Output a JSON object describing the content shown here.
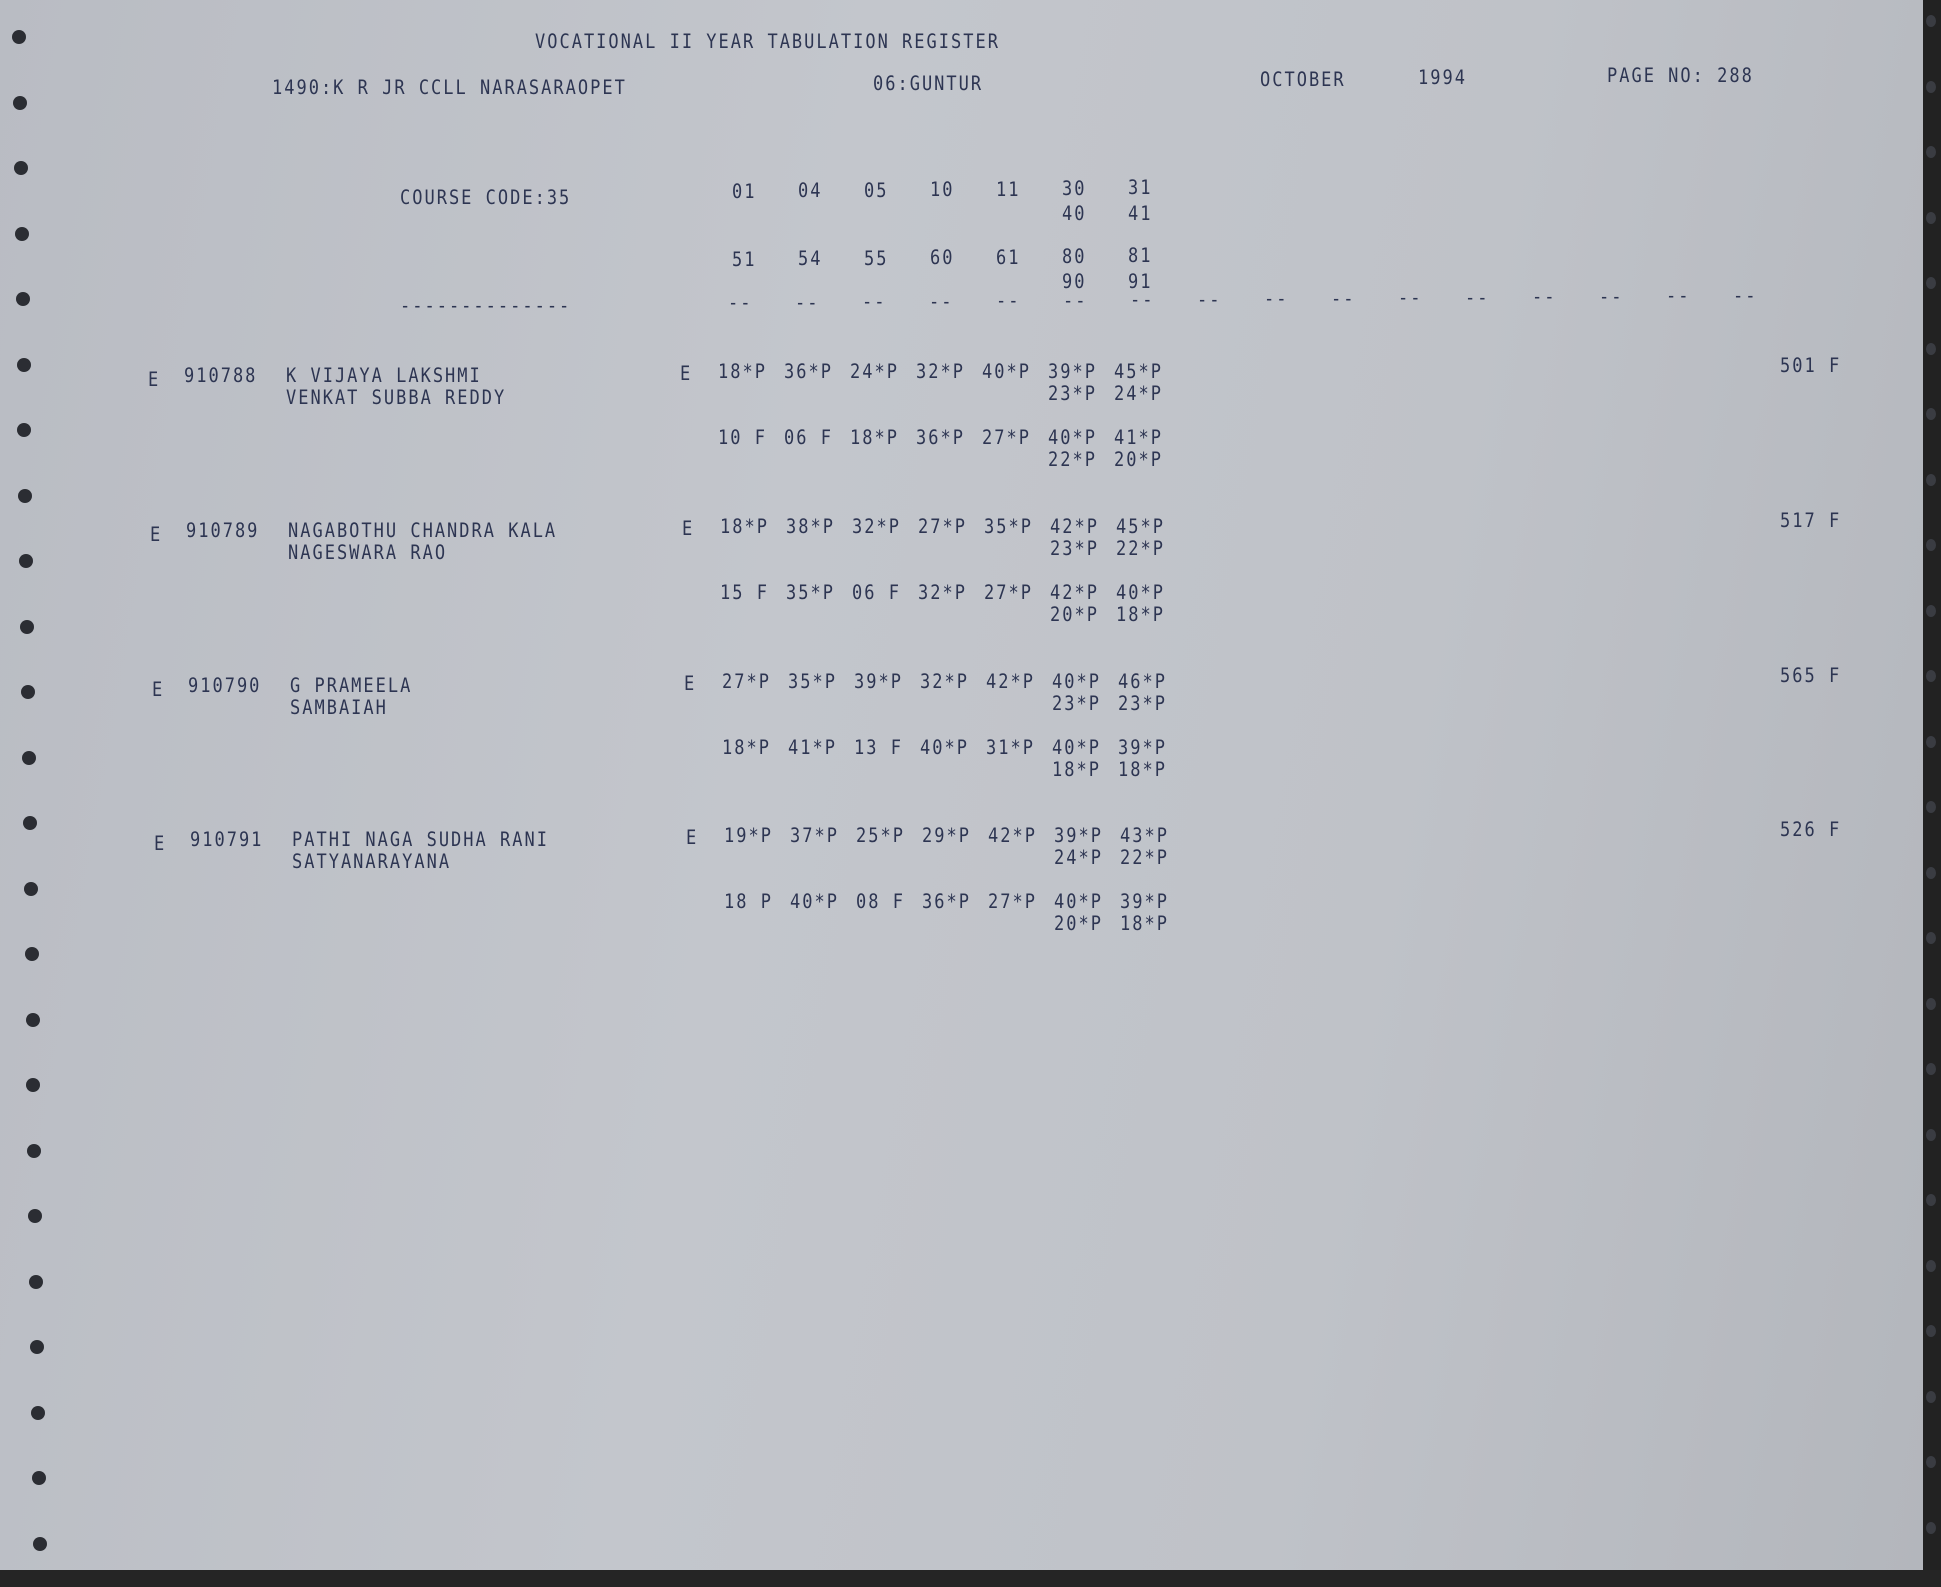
{
  "header": {
    "title": "VOCATIONAL II YEAR TABULATION REGISTER",
    "college": "1490:K R JR CCLL NARASARAOPET",
    "district": "06:GUNTUR",
    "month": "OCTOBER",
    "year": "1994",
    "page": "PAGE NO: 288"
  },
  "course": {
    "label": "COURSE CODE:35",
    "codes_row1": [
      "01",
      "04",
      "05",
      "10",
      "11",
      "30",
      "31"
    ],
    "codes_row1b": [
      "40",
      "41"
    ],
    "codes_row2": [
      "51",
      "54",
      "55",
      "60",
      "61",
      "80",
      "81"
    ],
    "codes_row2b": [
      "90",
      "91"
    ],
    "label_rule": "--------------",
    "dashes": [
      "--",
      "--",
      "--",
      "--",
      "--",
      "--",
      "--",
      "--",
      "--",
      "--",
      "--",
      "--",
      "--",
      "--",
      "--",
      "--"
    ]
  },
  "students": [
    {
      "medium": "E",
      "roll": "910788",
      "name": "K VIJAYA LAKSHMI",
      "father": "VENKAT SUBBA REDDY",
      "medium2": "E",
      "row1": [
        "18*P",
        "36*P",
        "24*P",
        "32*P",
        "40*P",
        "39*P",
        "45*P"
      ],
      "row1b": [
        "23*P",
        "24*P"
      ],
      "row2": [
        "10 F",
        "06 F",
        "18*P",
        "36*P",
        "27*P",
        "40*P",
        "41*P"
      ],
      "row2b": [
        "22*P",
        "20*P"
      ],
      "total": "501 F"
    },
    {
      "medium": "E",
      "roll": "910789",
      "name": "NAGABOTHU CHANDRA KALA",
      "father": "NAGESWARA RAO",
      "medium2": "E",
      "row1": [
        "18*P",
        "38*P",
        "32*P",
        "27*P",
        "35*P",
        "42*P",
        "45*P"
      ],
      "row1b": [
        "23*P",
        "22*P"
      ],
      "row2": [
        "15 F",
        "35*P",
        "06 F",
        "32*P",
        "27*P",
        "42*P",
        "40*P"
      ],
      "row2b": [
        "20*P",
        "18*P"
      ],
      "total": "517 F"
    },
    {
      "medium": "E",
      "roll": "910790",
      "name": "G PRAMEELA",
      "father": "SAMBAIAH",
      "medium2": "E",
      "row1": [
        "27*P",
        "35*P",
        "39*P",
        "32*P",
        "42*P",
        "40*P",
        "46*P"
      ],
      "row1b": [
        "23*P",
        "23*P"
      ],
      "row2": [
        "18*P",
        "41*P",
        "13 F",
        "40*P",
        "31*P",
        "40*P",
        "39*P"
      ],
      "row2b": [
        "18*P",
        "18*P"
      ],
      "total": "565 F"
    },
    {
      "medium": "E",
      "roll": "910791",
      "name": "PATHI NAGA SUDHA RANI",
      "father": "SATYANARAYANA",
      "medium2": "E",
      "row1": [
        "19*P",
        "37*P",
        "25*P",
        "29*P",
        "42*P",
        "39*P",
        "43*P"
      ],
      "row1b": [
        "24*P",
        "22*P"
      ],
      "row2": [
        "18 P",
        "40*P",
        "08 F",
        "36*P",
        "27*P",
        "40*P",
        "39*P"
      ],
      "row2b": [
        "20*P",
        "18*P"
      ],
      "total": "526 F"
    }
  ]
}
